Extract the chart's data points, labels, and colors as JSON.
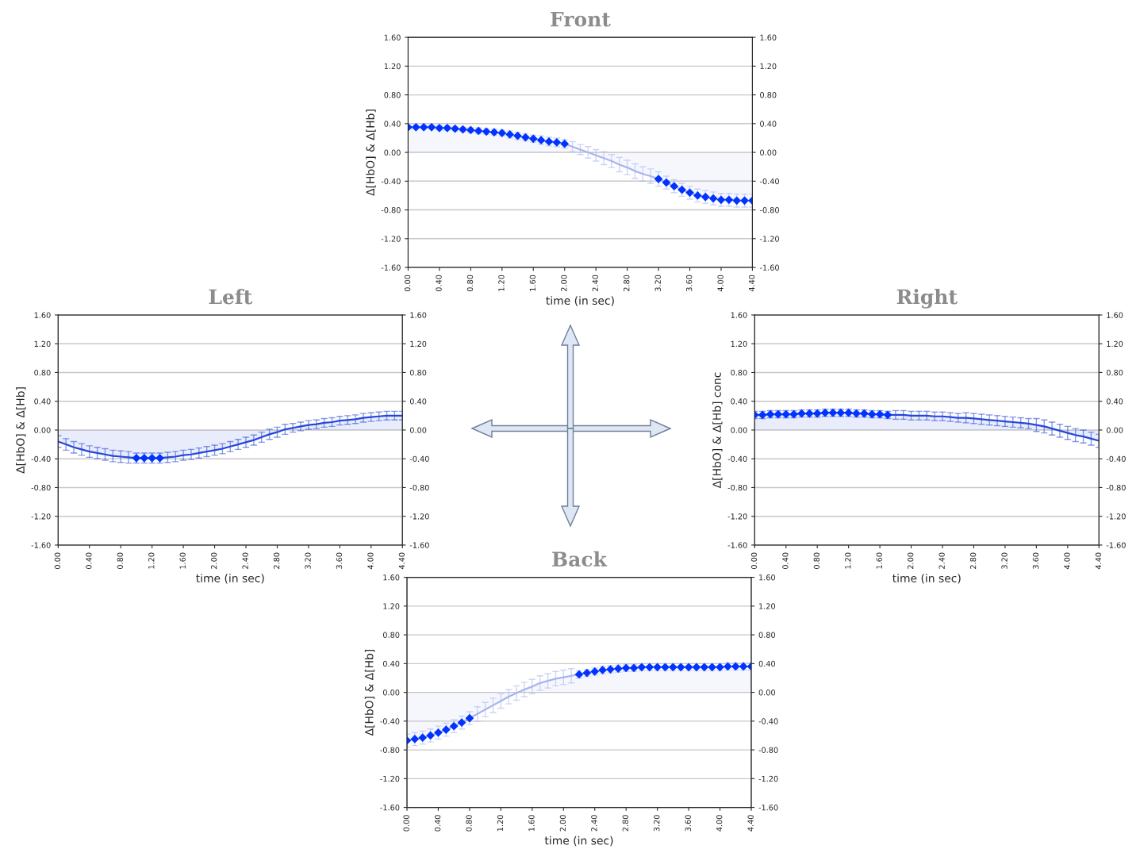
{
  "chart_data": [
    {
      "type": "area",
      "title": "Front",
      "xlabel": "time (in sec)",
      "ylabel": "Δ[HbO] & Δ[Hb]",
      "grid": "y",
      "line_style": "solid",
      "x": [
        0,
        0.1,
        0.2,
        0.3,
        0.4,
        0.5,
        0.6,
        0.7,
        0.8,
        0.9,
        1.0,
        1.1,
        1.2,
        1.3,
        1.4,
        1.5,
        1.6,
        1.7,
        1.8,
        1.9,
        2.0,
        2.1,
        2.2,
        2.3,
        2.4,
        2.5,
        2.6,
        2.7,
        2.8,
        2.9,
        3.0,
        3.1,
        3.2,
        3.3,
        3.4,
        3.5,
        3.6,
        3.7,
        3.8,
        3.9,
        4.0,
        4.1,
        4.2,
        4.3,
        4.4
      ],
      "xlim": [
        0,
        4.4
      ],
      "xticks": [
        {
          "value": 0,
          "label": "0.00"
        },
        {
          "value": 0.4,
          "label": "0.40"
        },
        {
          "value": 0.8,
          "label": "0.80"
        },
        {
          "value": 1.2,
          "label": "1.20"
        },
        {
          "value": 1.6,
          "label": "1.60"
        },
        {
          "value": 2.0,
          "label": "2.00"
        },
        {
          "value": 2.4,
          "label": "2.40"
        },
        {
          "value": 2.8,
          "label": "2.80"
        },
        {
          "value": 3.2,
          "label": "3.20"
        },
        {
          "value": 3.6,
          "label": "3.60"
        },
        {
          "value": 4.0,
          "label": "4.00"
        },
        {
          "value": 4.4,
          "label": "4.40"
        }
      ],
      "ylim": [
        -1.6,
        1.6
      ],
      "yticks": [
        {
          "value": -1.6,
          "label": "-1.60"
        },
        {
          "value": -1.2,
          "label": "-1.20"
        },
        {
          "value": -0.8,
          "label": "-0.80"
        },
        {
          "value": -0.4,
          "label": "-0.40"
        },
        {
          "value": 0,
          "label": "0.00"
        },
        {
          "value": 0.4,
          "label": "0.40"
        },
        {
          "value": 0.8,
          "label": "0.80"
        },
        {
          "value": 1.2,
          "label": "1.20"
        },
        {
          "value": 1.6,
          "label": "1.60"
        }
      ],
      "y2lim": [
        -1.6,
        1.6
      ],
      "y2ticks": [
        {
          "value": -1.6,
          "label": "-1.60"
        },
        {
          "value": -1.2,
          "label": "-1.20"
        },
        {
          "value": -0.8,
          "label": "-0.80"
        },
        {
          "value": -0.4,
          "label": "-0.40"
        },
        {
          "value": 0,
          "label": "0.00"
        },
        {
          "value": 0.4,
          "label": "0.40"
        },
        {
          "value": 0.8,
          "label": "0.80"
        },
        {
          "value": 1.2,
          "label": "1.20"
        },
        {
          "value": 1.6,
          "label": "1.60"
        }
      ],
      "series": [
        {
          "color": "#a8b4ef",
          "values": [
            0.35,
            0.35,
            0.35,
            0.35,
            0.34,
            0.34,
            0.33,
            0.32,
            0.31,
            0.3,
            0.29,
            0.28,
            0.27,
            0.25,
            0.23,
            0.21,
            0.19,
            0.17,
            0.15,
            0.14,
            0.12,
            0.08,
            0.04,
            0.0,
            -0.04,
            -0.08,
            -0.12,
            -0.17,
            -0.21,
            -0.26,
            -0.3,
            -0.33,
            -0.37,
            -0.42,
            -0.47,
            -0.52,
            -0.56,
            -0.6,
            -0.62,
            -0.64,
            -0.66,
            -0.66,
            -0.67,
            -0.67,
            -0.67
          ],
          "errors": [
            0.02,
            0.02,
            0.02,
            0.02,
            0.03,
            0.03,
            0.03,
            0.03,
            0.03,
            0.04,
            0.04,
            0.04,
            0.04,
            0.05,
            0.05,
            0.05,
            0.05,
            0.06,
            0.06,
            0.06,
            0.06,
            0.07,
            0.07,
            0.08,
            0.08,
            0.09,
            0.09,
            0.1,
            0.1,
            0.1,
            0.1,
            0.1,
            0.1,
            0.09,
            0.09,
            0.09,
            0.09,
            0.09,
            0.09,
            0.09,
            0.09,
            0.09,
            0.09,
            0.09,
            0.09
          ]
        },
        {
          "type": "scatter",
          "marker": "diamond",
          "color": "#0033ff",
          "values": [
            0.35,
            0.35,
            0.35,
            0.35,
            0.34,
            0.34,
            0.33,
            0.32,
            0.31,
            0.3,
            0.29,
            0.28,
            0.27,
            0.25,
            0.23,
            0.21,
            0.19,
            0.17,
            0.15,
            0.14,
            0.12,
            null,
            null,
            null,
            null,
            null,
            null,
            null,
            null,
            null,
            null,
            null,
            -0.37,
            -0.42,
            -0.47,
            -0.52,
            -0.56,
            -0.6,
            -0.62,
            -0.64,
            -0.66,
            -0.66,
            -0.67,
            -0.67,
            -0.67
          ]
        }
      ]
    },
    {
      "type": "area",
      "title": "Left",
      "xlabel": "time (in sec)",
      "ylabel": "Δ[HbO] & Δ[Hb]",
      "grid": "y",
      "line_style": "solid",
      "x": [
        0,
        0.1,
        0.2,
        0.3,
        0.4,
        0.5,
        0.6,
        0.7,
        0.8,
        0.9,
        1.0,
        1.1,
        1.2,
        1.3,
        1.4,
        1.5,
        1.6,
        1.7,
        1.8,
        1.9,
        2.0,
        2.1,
        2.2,
        2.3,
        2.4,
        2.5,
        2.6,
        2.7,
        2.8,
        2.9,
        3.0,
        3.1,
        3.2,
        3.3,
        3.4,
        3.5,
        3.6,
        3.7,
        3.8,
        3.9,
        4.0,
        4.1,
        4.2,
        4.3,
        4.4
      ],
      "xlim": [
        0,
        4.4
      ],
      "xticks": [
        {
          "value": 0,
          "label": "0.00"
        },
        {
          "value": 0.4,
          "label": "0.40"
        },
        {
          "value": 0.8,
          "label": "0.80"
        },
        {
          "value": 1.2,
          "label": "1.20"
        },
        {
          "value": 1.6,
          "label": "1.60"
        },
        {
          "value": 2.0,
          "label": "2.00"
        },
        {
          "value": 2.4,
          "label": "2.40"
        },
        {
          "value": 2.8,
          "label": "2.80"
        },
        {
          "value": 3.2,
          "label": "3.20"
        },
        {
          "value": 3.6,
          "label": "3.60"
        },
        {
          "value": 4.0,
          "label": "4.00"
        },
        {
          "value": 4.4,
          "label": "4.40"
        }
      ],
      "ylim": [
        -1.6,
        1.6
      ],
      "yticks": [
        {
          "value": -1.6,
          "label": "-1.60"
        },
        {
          "value": -1.2,
          "label": "-1.20"
        },
        {
          "value": -0.8,
          "label": "-0.80"
        },
        {
          "value": -0.4,
          "label": "-0.40"
        },
        {
          "value": 0,
          "label": "0.00"
        },
        {
          "value": 0.4,
          "label": "0.40"
        },
        {
          "value": 0.8,
          "label": "0.80"
        },
        {
          "value": 1.2,
          "label": "1.20"
        },
        {
          "value": 1.6,
          "label": "1.60"
        }
      ],
      "y2lim": [
        -1.6,
        1.6
      ],
      "y2ticks": [
        {
          "value": -1.6,
          "label": "-1.60"
        },
        {
          "value": -1.2,
          "label": "-1.20"
        },
        {
          "value": -0.8,
          "label": "-0.80"
        },
        {
          "value": -0.4,
          "label": "-0.40"
        },
        {
          "value": 0,
          "label": "0.00"
        },
        {
          "value": 0.4,
          "label": "0.40"
        },
        {
          "value": 0.8,
          "label": "0.80"
        },
        {
          "value": 1.2,
          "label": "1.20"
        },
        {
          "value": 1.6,
          "label": "1.60"
        }
      ],
      "series": [
        {
          "color": "#2547d9",
          "values": [
            -0.16,
            -0.2,
            -0.24,
            -0.27,
            -0.3,
            -0.32,
            -0.34,
            -0.36,
            -0.37,
            -0.38,
            -0.39,
            -0.39,
            -0.39,
            -0.39,
            -0.38,
            -0.37,
            -0.35,
            -0.34,
            -0.32,
            -0.3,
            -0.28,
            -0.26,
            -0.23,
            -0.2,
            -0.17,
            -0.14,
            -0.1,
            -0.06,
            -0.03,
            0.01,
            0.03,
            0.05,
            0.07,
            0.08,
            0.1,
            0.11,
            0.13,
            0.14,
            0.15,
            0.17,
            0.18,
            0.19,
            0.2,
            0.2,
            0.2
          ],
          "errors": [
            0.08,
            0.08,
            0.08,
            0.08,
            0.08,
            0.08,
            0.08,
            0.08,
            0.08,
            0.08,
            0.07,
            0.07,
            0.07,
            0.07,
            0.07,
            0.07,
            0.07,
            0.07,
            0.07,
            0.07,
            0.07,
            0.07,
            0.07,
            0.07,
            0.07,
            0.07,
            0.07,
            0.07,
            0.07,
            0.07,
            0.06,
            0.06,
            0.06,
            0.06,
            0.06,
            0.06,
            0.06,
            0.06,
            0.06,
            0.06,
            0.06,
            0.06,
            0.06,
            0.06,
            0.06
          ]
        },
        {
          "type": "scatter",
          "marker": "diamond",
          "color": "#0033ff",
          "values": [
            null,
            null,
            null,
            null,
            null,
            null,
            null,
            null,
            null,
            null,
            -0.39,
            -0.39,
            -0.39,
            -0.39,
            null,
            null,
            null,
            null,
            null,
            null,
            null,
            null,
            null,
            null,
            null,
            null,
            null,
            null,
            null,
            null,
            null,
            null,
            null,
            null,
            null,
            null,
            null,
            null,
            null,
            null,
            null,
            null,
            null,
            null,
            null
          ]
        }
      ]
    },
    {
      "type": "area",
      "title": "Right",
      "xlabel": "time (in sec)",
      "ylabel": "Δ[HbO] & Δ[Hb] conc",
      "grid": "y",
      "line_style": "solid",
      "x": [
        0,
        0.1,
        0.2,
        0.3,
        0.4,
        0.5,
        0.6,
        0.7,
        0.8,
        0.9,
        1.0,
        1.1,
        1.2,
        1.3,
        1.4,
        1.5,
        1.6,
        1.7,
        1.8,
        1.9,
        2.0,
        2.1,
        2.2,
        2.3,
        2.4,
        2.5,
        2.6,
        2.7,
        2.8,
        2.9,
        3.0,
        3.1,
        3.2,
        3.3,
        3.4,
        3.5,
        3.6,
        3.7,
        3.8,
        3.9,
        4.0,
        4.1,
        4.2,
        4.3,
        4.4
      ],
      "xlim": [
        0,
        4.4
      ],
      "xticks": [
        {
          "value": 0,
          "label": "0.00"
        },
        {
          "value": 0.4,
          "label": "0.40"
        },
        {
          "value": 0.8,
          "label": "0.80"
        },
        {
          "value": 1.2,
          "label": "1.20"
        },
        {
          "value": 1.6,
          "label": "1.60"
        },
        {
          "value": 2.0,
          "label": "2.00"
        },
        {
          "value": 2.4,
          "label": "2.40"
        },
        {
          "value": 2.8,
          "label": "2.80"
        },
        {
          "value": 3.2,
          "label": "3.20"
        },
        {
          "value": 3.6,
          "label": "3.60"
        },
        {
          "value": 4.0,
          "label": "4.00"
        },
        {
          "value": 4.4,
          "label": "4.40"
        }
      ],
      "ylim": [
        -1.6,
        1.6
      ],
      "yticks": [
        {
          "value": -1.6,
          "label": "-1.60"
        },
        {
          "value": -1.2,
          "label": "-1.20"
        },
        {
          "value": -0.8,
          "label": "-0.80"
        },
        {
          "value": -0.4,
          "label": "-0.40"
        },
        {
          "value": 0,
          "label": "0.00"
        },
        {
          "value": 0.4,
          "label": "0.40"
        },
        {
          "value": 0.8,
          "label": "0.80"
        },
        {
          "value": 1.2,
          "label": "1.20"
        },
        {
          "value": 1.6,
          "label": "1.60"
        }
      ],
      "y2lim": [
        -1.6,
        1.6
      ],
      "y2ticks": [
        {
          "value": -1.6,
          "label": "-1.60"
        },
        {
          "value": -1.2,
          "label": "-1.20"
        },
        {
          "value": -0.8,
          "label": "-0.80"
        },
        {
          "value": -0.4,
          "label": "-0.40"
        },
        {
          "value": 0,
          "label": "0.00"
        },
        {
          "value": 0.4,
          "label": "0.40"
        },
        {
          "value": 0.8,
          "label": "0.80"
        },
        {
          "value": 1.2,
          "label": "1.20"
        },
        {
          "value": 1.6,
          "label": "1.60"
        }
      ],
      "series": [
        {
          "color": "#2547d9",
          "values": [
            0.21,
            0.21,
            0.22,
            0.22,
            0.22,
            0.22,
            0.23,
            0.23,
            0.23,
            0.24,
            0.24,
            0.24,
            0.24,
            0.23,
            0.23,
            0.22,
            0.22,
            0.21,
            0.21,
            0.21,
            0.2,
            0.2,
            0.2,
            0.19,
            0.19,
            0.18,
            0.17,
            0.17,
            0.16,
            0.15,
            0.14,
            0.13,
            0.12,
            0.11,
            0.1,
            0.09,
            0.07,
            0.05,
            0.02,
            -0.01,
            -0.04,
            -0.07,
            -0.09,
            -0.12,
            -0.15
          ],
          "errors": [
            0.05,
            0.05,
            0.05,
            0.05,
            0.05,
            0.05,
            0.05,
            0.05,
            0.05,
            0.05,
            0.05,
            0.05,
            0.05,
            0.05,
            0.05,
            0.05,
            0.05,
            0.05,
            0.06,
            0.06,
            0.06,
            0.06,
            0.06,
            0.06,
            0.06,
            0.06,
            0.06,
            0.07,
            0.07,
            0.07,
            0.07,
            0.07,
            0.07,
            0.07,
            0.07,
            0.07,
            0.09,
            0.09,
            0.09,
            0.09,
            0.09,
            0.09,
            0.09,
            0.09,
            0.09
          ]
        },
        {
          "type": "scatter",
          "marker": "diamond",
          "color": "#0033ff",
          "values": [
            0.21,
            0.21,
            0.22,
            0.22,
            0.22,
            0.22,
            0.23,
            0.23,
            0.23,
            0.24,
            0.24,
            0.24,
            0.24,
            0.23,
            0.23,
            0.22,
            0.22,
            0.21,
            null,
            null,
            null,
            null,
            null,
            null,
            null,
            null,
            null,
            null,
            null,
            null,
            null,
            null,
            null,
            null,
            null,
            null,
            null,
            null,
            null,
            null,
            null,
            null,
            null,
            null,
            null
          ]
        }
      ]
    },
    {
      "type": "area",
      "title": "Back",
      "xlabel": "time (in sec)",
      "ylabel": "Δ[HbO] & Δ[Hb]",
      "grid": "y",
      "line_style": "solid",
      "x": [
        0,
        0.1,
        0.2,
        0.3,
        0.4,
        0.5,
        0.6,
        0.7,
        0.8,
        0.9,
        1.0,
        1.1,
        1.2,
        1.3,
        1.4,
        1.5,
        1.6,
        1.7,
        1.8,
        1.9,
        2.0,
        2.1,
        2.2,
        2.3,
        2.4,
        2.5,
        2.6,
        2.7,
        2.8,
        2.9,
        3.0,
        3.1,
        3.2,
        3.3,
        3.4,
        3.5,
        3.6,
        3.7,
        3.8,
        3.9,
        4.0,
        4.1,
        4.2,
        4.3,
        4.4
      ],
      "xlim": [
        0,
        4.4
      ],
      "xticks": [
        {
          "value": 0,
          "label": "0.00"
        },
        {
          "value": 0.4,
          "label": "0.40"
        },
        {
          "value": 0.8,
          "label": "0.80"
        },
        {
          "value": 1.2,
          "label": "1.20"
        },
        {
          "value": 1.6,
          "label": "1.60"
        },
        {
          "value": 2.0,
          "label": "2.00"
        },
        {
          "value": 2.4,
          "label": "2.40"
        },
        {
          "value": 2.8,
          "label": "2.80"
        },
        {
          "value": 3.2,
          "label": "3.20"
        },
        {
          "value": 3.6,
          "label": "3.60"
        },
        {
          "value": 4.0,
          "label": "4.00"
        },
        {
          "value": 4.4,
          "label": "4.40"
        }
      ],
      "ylim": [
        -1.6,
        1.6
      ],
      "yticks": [
        {
          "value": -1.6,
          "label": "-1.60"
        },
        {
          "value": -1.2,
          "label": "-1.20"
        },
        {
          "value": -0.8,
          "label": "-0.80"
        },
        {
          "value": -0.4,
          "label": "-0.40"
        },
        {
          "value": 0,
          "label": "0.00"
        },
        {
          "value": 0.4,
          "label": "0.40"
        },
        {
          "value": 0.8,
          "label": "0.80"
        },
        {
          "value": 1.2,
          "label": "1.20"
        },
        {
          "value": 1.6,
          "label": "1.60"
        }
      ],
      "y2lim": [
        -1.6,
        1.6
      ],
      "y2ticks": [
        {
          "value": -1.6,
          "label": "-1.60"
        },
        {
          "value": -1.2,
          "label": "-1.20"
        },
        {
          "value": -0.8,
          "label": "-0.80"
        },
        {
          "value": -0.4,
          "label": "-0.40"
        },
        {
          "value": 0,
          "label": "0.00"
        },
        {
          "value": 0.4,
          "label": "0.40"
        },
        {
          "value": 0.8,
          "label": "0.80"
        },
        {
          "value": 1.2,
          "label": "1.20"
        },
        {
          "value": 1.6,
          "label": "1.60"
        }
      ],
      "series": [
        {
          "color": "#a8b4ef",
          "values": [
            -0.67,
            -0.65,
            -0.63,
            -0.6,
            -0.56,
            -0.52,
            -0.47,
            -0.42,
            -0.36,
            -0.3,
            -0.24,
            -0.18,
            -0.12,
            -0.06,
            -0.01,
            0.04,
            0.08,
            0.13,
            0.16,
            0.19,
            0.21,
            0.23,
            0.25,
            0.27,
            0.29,
            0.31,
            0.32,
            0.33,
            0.34,
            0.34,
            0.35,
            0.35,
            0.35,
            0.35,
            0.35,
            0.35,
            0.35,
            0.35,
            0.35,
            0.35,
            0.35,
            0.36,
            0.36,
            0.36,
            0.36
          ],
          "errors": [
            0.09,
            0.09,
            0.09,
            0.09,
            0.09,
            0.09,
            0.09,
            0.09,
            0.09,
            0.1,
            0.1,
            0.1,
            0.1,
            0.1,
            0.1,
            0.1,
            0.1,
            0.1,
            0.1,
            0.1,
            0.1,
            0.1,
            0.05,
            0.05,
            0.05,
            0.05,
            0.05,
            0.05,
            0.05,
            0.05,
            0.05,
            0.05,
            0.05,
            0.05,
            0.05,
            0.05,
            0.05,
            0.05,
            0.05,
            0.05,
            0.05,
            0.05,
            0.05,
            0.05,
            0.05
          ]
        },
        {
          "type": "scatter",
          "marker": "diamond",
          "color": "#0033ff",
          "values": [
            -0.67,
            -0.65,
            -0.63,
            -0.6,
            -0.56,
            -0.52,
            -0.47,
            -0.42,
            -0.36,
            null,
            null,
            null,
            null,
            null,
            null,
            null,
            null,
            null,
            null,
            null,
            null,
            null,
            0.25,
            0.27,
            0.29,
            0.31,
            0.32,
            0.33,
            0.34,
            0.34,
            0.35,
            0.35,
            0.35,
            0.35,
            0.35,
            0.35,
            0.35,
            0.35,
            0.35,
            0.35,
            0.35,
            0.36,
            0.36,
            0.36,
            0.36
          ]
        }
      ]
    }
  ]
}
